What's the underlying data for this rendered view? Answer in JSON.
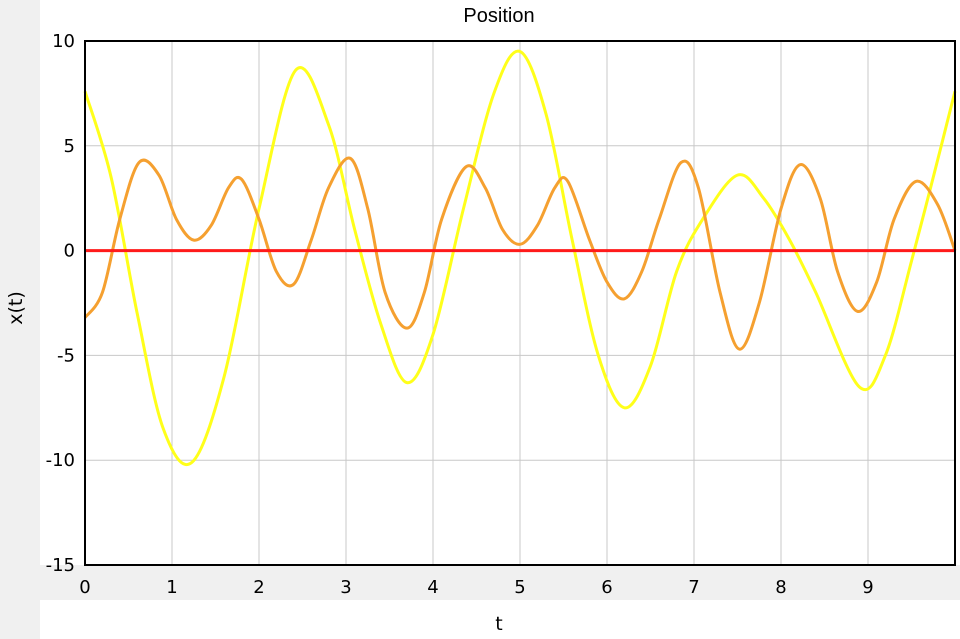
{
  "chart_data": {
    "type": "line",
    "title": "Position",
    "xlabel": "t",
    "ylabel": "x(t)",
    "xlim": [
      0,
      10
    ],
    "ylim": [
      -15,
      10
    ],
    "xticks": [
      0,
      1,
      2,
      3,
      4,
      5,
      6,
      7,
      8,
      9
    ],
    "yticks": [
      10,
      5,
      0,
      -5,
      -10,
      -15
    ],
    "grid": true,
    "legend": "none",
    "series": [
      {
        "color": "#ffff1a",
        "x": [
          0,
          0.3,
          0.6,
          0.9,
          1.23,
          1.6,
          2.0,
          2.42,
          2.8,
          3.1,
          3.4,
          3.7,
          4.0,
          4.35,
          4.7,
          5.0,
          5.3,
          5.6,
          5.9,
          6.2,
          6.5,
          6.8,
          7.1,
          7.5,
          7.8,
          8.1,
          8.4,
          8.9,
          9.2,
          9.5,
          9.75,
          10.0
        ],
        "y": [
          7.6,
          3.5,
          -3.0,
          -8.5,
          -10.1,
          -6.0,
          2.0,
          8.6,
          6.0,
          1.0,
          -3.5,
          -6.3,
          -4.0,
          2.0,
          7.5,
          9.5,
          6.5,
          0.5,
          -5.0,
          -7.5,
          -5.5,
          -1.0,
          1.5,
          3.6,
          2.5,
          0.5,
          -2.0,
          -6.5,
          -5.0,
          -0.5,
          3.5,
          7.6
        ]
      },
      {
        "color": "#f5a030",
        "x": [
          0,
          0.2,
          0.4,
          0.62,
          0.85,
          1.05,
          1.25,
          1.45,
          1.65,
          1.8,
          2.0,
          2.2,
          2.4,
          2.6,
          2.8,
          3.05,
          3.25,
          3.45,
          3.7,
          3.9,
          4.1,
          4.38,
          4.6,
          4.8,
          5.0,
          5.2,
          5.4,
          5.55,
          5.8,
          6.0,
          6.2,
          6.4,
          6.6,
          6.85,
          7.05,
          7.3,
          7.52,
          7.75,
          8.0,
          8.22,
          8.45,
          8.65,
          8.88,
          9.1,
          9.3,
          9.55,
          9.8,
          10.0
        ],
        "y": [
          -3.2,
          -2.0,
          1.5,
          4.2,
          3.6,
          1.5,
          0.5,
          1.2,
          3.0,
          3.4,
          1.5,
          -1.0,
          -1.6,
          0.5,
          3.0,
          4.4,
          2.0,
          -2.0,
          -3.7,
          -2.0,
          1.5,
          4.0,
          3.0,
          1.0,
          0.3,
          1.2,
          3.0,
          3.3,
          0.5,
          -1.5,
          -2.3,
          -1.0,
          1.5,
          4.2,
          3.0,
          -2.0,
          -4.7,
          -2.5,
          2.0,
          4.1,
          2.5,
          -1.0,
          -2.9,
          -1.5,
          1.5,
          3.3,
          2.2,
          0.0
        ]
      },
      {
        "color": "#ff1a1a",
        "x": [
          0,
          10
        ],
        "y": [
          0,
          0
        ]
      }
    ]
  }
}
